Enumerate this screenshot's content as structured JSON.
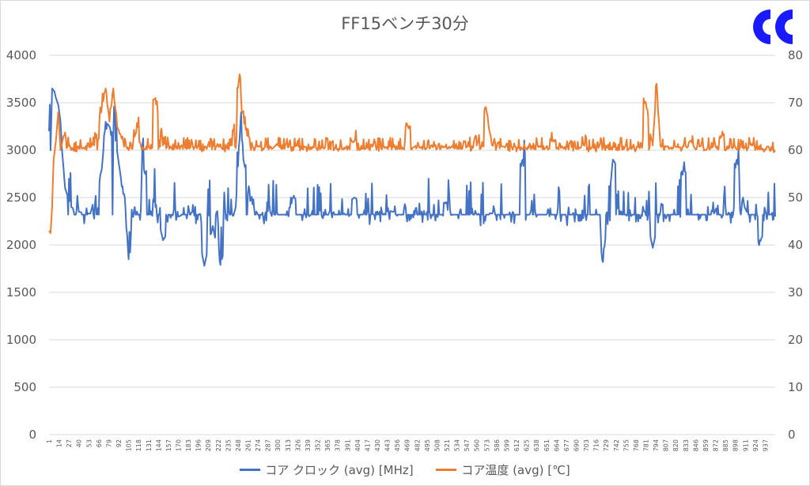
{
  "chart_data": {
    "type": "line",
    "title": "FF15ベンチ30分",
    "y_left": {
      "ticks": [
        "0",
        "500",
        "1000",
        "1500",
        "2000",
        "2500",
        "3000",
        "3500",
        "4000"
      ],
      "lim": [
        0,
        4000
      ]
    },
    "y_right": {
      "ticks": [
        "0",
        "10",
        "20",
        "30",
        "40",
        "50",
        "60",
        "70",
        "80"
      ],
      "lim": [
        0,
        80
      ]
    },
    "x_ticks": [
      "1",
      "14",
      "27",
      "40",
      "53",
      "66",
      "79",
      "92",
      "105",
      "118",
      "131",
      "144",
      "157",
      "170",
      "183",
      "196",
      "209",
      "222",
      "235",
      "248",
      "261",
      "274",
      "287",
      "300",
      "313",
      "326",
      "339",
      "352",
      "365",
      "378",
      "391",
      "404",
      "417",
      "430",
      "443",
      "456",
      "469",
      "482",
      "495",
      "508",
      "521",
      "534",
      "547",
      "560",
      "573",
      "586",
      "599",
      "612",
      "625",
      "638",
      "651",
      "664",
      "677",
      "690",
      "703",
      "716",
      "729",
      "742",
      "755",
      "768",
      "781",
      "794",
      "807",
      "820",
      "833",
      "846",
      "859",
      "872",
      "885",
      "898",
      "911",
      "924",
      "937"
    ],
    "x_range": [
      1,
      950
    ],
    "grid": true,
    "legend_position": "bottom",
    "series": [
      {
        "name": "コア クロック (avg) [MHz]",
        "axis": "left",
        "color": "#4472C4",
        "baseline": 2320,
        "key_points": [
          [
            1,
            3200
          ],
          [
            2,
            3480
          ],
          [
            3,
            3000
          ],
          [
            5,
            3650
          ],
          [
            8,
            3620
          ],
          [
            10,
            3550
          ],
          [
            13,
            3480
          ],
          [
            16,
            3300
          ],
          [
            18,
            3000
          ],
          [
            22,
            2600
          ],
          [
            30,
            2400
          ],
          [
            40,
            2350
          ],
          [
            55,
            2330
          ],
          [
            70,
            2800
          ],
          [
            75,
            3300
          ],
          [
            80,
            3250
          ],
          [
            88,
            3100
          ],
          [
            95,
            2700
          ],
          [
            100,
            2500
          ],
          [
            105,
            1850
          ],
          [
            110,
            2300
          ],
          [
            125,
            2800
          ],
          [
            140,
            2400
          ],
          [
            150,
            2050
          ],
          [
            170,
            2300
          ],
          [
            190,
            2350
          ],
          [
            204,
            1780
          ],
          [
            215,
            2200
          ],
          [
            225,
            1790
          ],
          [
            245,
            2400
          ],
          [
            252,
            3400
          ],
          [
            255,
            2900
          ],
          [
            265,
            2500
          ],
          [
            290,
            2350
          ],
          [
            320,
            2500
          ],
          [
            370,
            2330
          ],
          [
            400,
            2500
          ],
          [
            450,
            2350
          ],
          [
            520,
            2450
          ],
          [
            580,
            2330
          ],
          [
            620,
            2900
          ],
          [
            700,
            2350
          ],
          [
            725,
            1820
          ],
          [
            738,
            2900
          ],
          [
            780,
            2350
          ],
          [
            790,
            1970
          ],
          [
            800,
            2350
          ],
          [
            830,
            2800
          ],
          [
            870,
            2330
          ],
          [
            900,
            2900
          ],
          [
            910,
            2400
          ],
          [
            930,
            2050
          ],
          [
            950,
            2300
          ]
        ],
        "legend_label": "コア クロック (avg) [MHz]"
      },
      {
        "name": "コア温度 (avg) [℃]",
        "axis": "right",
        "color": "#ED7D31",
        "baseline": 60.5,
        "key_points": [
          [
            1,
            43
          ],
          [
            3,
            42.5
          ],
          [
            5,
            48
          ],
          [
            7,
            58
          ],
          [
            10,
            62
          ],
          [
            13,
            68
          ],
          [
            16,
            60
          ],
          [
            20,
            63
          ],
          [
            30,
            60
          ],
          [
            60,
            61
          ],
          [
            70,
            69
          ],
          [
            75,
            73
          ],
          [
            80,
            66
          ],
          [
            85,
            73
          ],
          [
            90,
            65
          ],
          [
            95,
            63
          ],
          [
            105,
            60
          ],
          [
            115,
            64
          ],
          [
            140,
            71
          ],
          [
            150,
            61
          ],
          [
            200,
            60
          ],
          [
            240,
            61
          ],
          [
            250,
            76
          ],
          [
            253,
            68
          ],
          [
            260,
            63
          ],
          [
            300,
            61
          ],
          [
            400,
            62
          ],
          [
            470,
            65
          ],
          [
            560,
            61
          ],
          [
            573,
            68
          ],
          [
            580,
            61
          ],
          [
            660,
            62
          ],
          [
            700,
            61
          ],
          [
            781,
            70
          ],
          [
            790,
            61
          ],
          [
            795,
            74
          ],
          [
            800,
            61
          ],
          [
            840,
            62
          ],
          [
            860,
            60
          ],
          [
            880,
            63
          ],
          [
            920,
            61
          ],
          [
            950,
            60
          ]
        ],
        "legend_label": "コア温度 (avg) [℃]"
      }
    ]
  },
  "logo": {
    "colors": [
      "#1a1aff",
      "#1a1aff"
    ]
  }
}
